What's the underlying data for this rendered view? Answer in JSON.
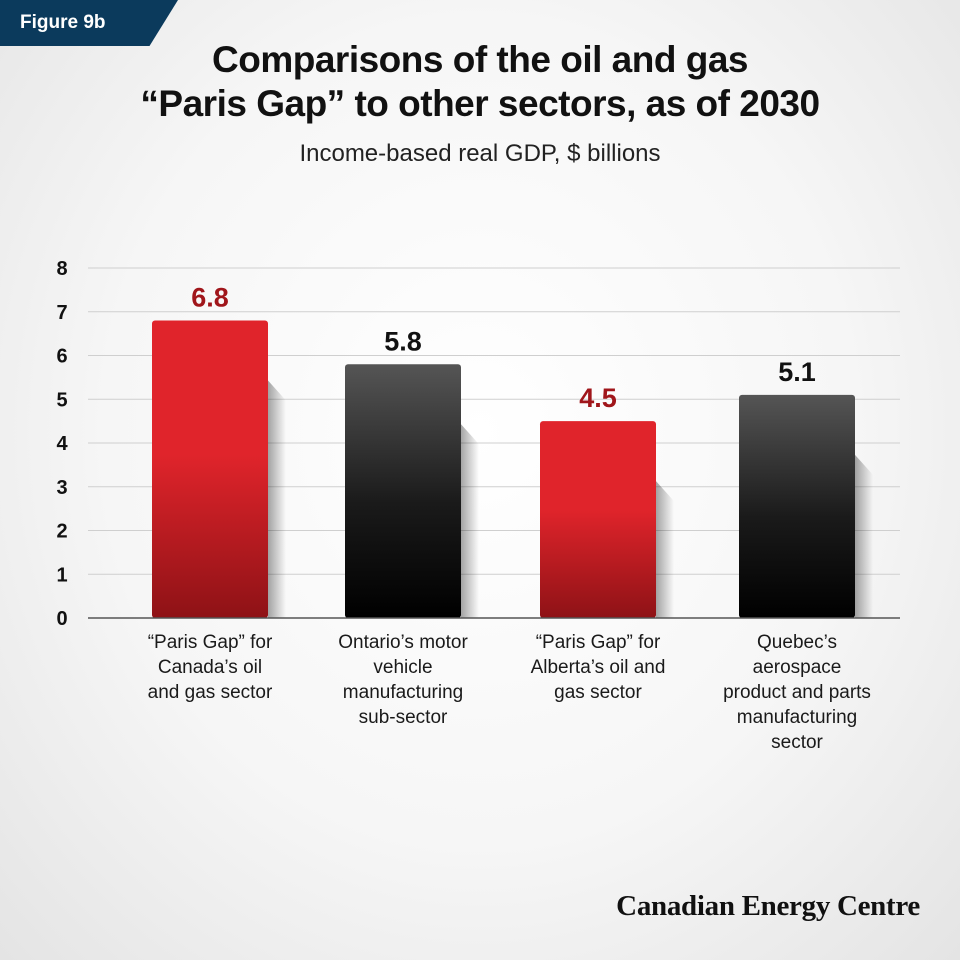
{
  "figure_tag": "Figure 9b",
  "title_line1": "Comparisons of the oil and gas",
  "title_line2": "“Paris Gap” to other sectors, as of 2030",
  "subtitle": "Income-based real GDP, $ billions",
  "brand": "Canadian Energy Centre",
  "colors": {
    "tag_bg": "#0b3a5c",
    "red_top": "#e0242b",
    "red_bottom": "#8e1216",
    "grey_top": "#555555",
    "black_bottom": "#000000",
    "red_label": "#a0161b",
    "black_label": "#111111"
  },
  "chart_data": {
    "type": "bar",
    "title": "Comparisons of the oil and gas “Paris Gap” to other sectors, as of 2030",
    "subtitle": "Income-based real GDP, $ billions",
    "ylim": [
      0,
      8
    ],
    "yticks": [
      "0",
      "1",
      "2",
      "3",
      "4",
      "5",
      "6",
      "7",
      "8"
    ],
    "grid": true,
    "categories": [
      [
        "“Paris Gap” for",
        "Canada’s oil",
        "and gas sector"
      ],
      [
        "Ontario’s motor",
        "vehicle",
        "manufacturing",
        "sub-sector"
      ],
      [
        "“Paris Gap” for",
        "Alberta’s oil and",
        "gas sector"
      ],
      [
        "Quebec’s",
        "aerospace",
        "product and parts",
        "manufacturing",
        "sector"
      ]
    ],
    "values": [
      6.8,
      5.8,
      4.5,
      5.1
    ],
    "value_labels": [
      "6.8",
      "5.8",
      "4.5",
      "5.1"
    ],
    "bar_styles": [
      "red",
      "black",
      "red",
      "black"
    ]
  }
}
